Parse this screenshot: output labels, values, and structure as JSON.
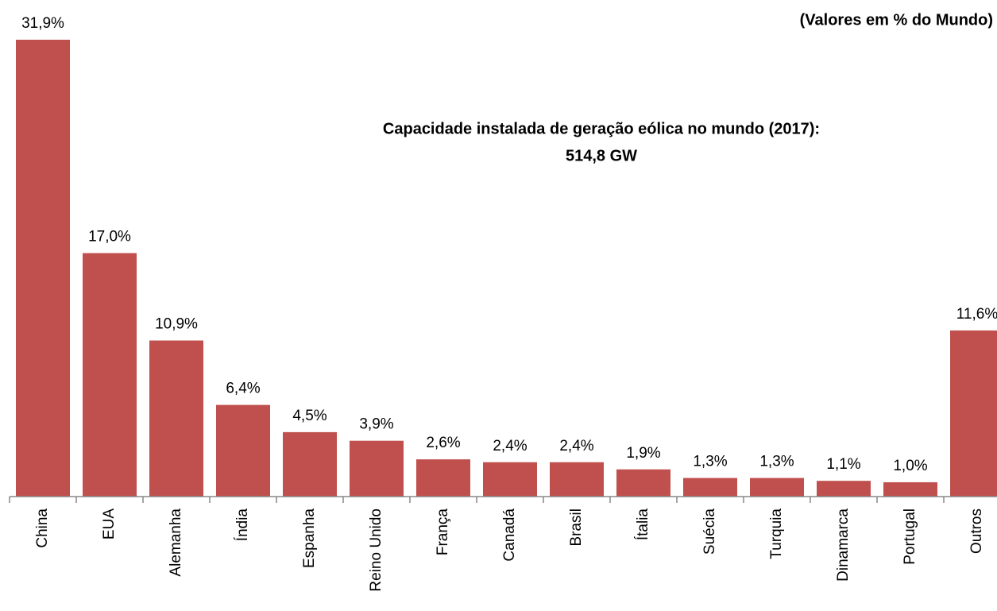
{
  "chart_data": {
    "type": "bar",
    "title": "Capacidade instalada de geração eólica no mundo (2017):",
    "subtitle": "514,8 GW",
    "note": "(Valores em % do Mundo)",
    "categories": [
      "China",
      "EUA",
      "Alemanha",
      "Índia",
      "Espanha",
      "Reino Unido",
      "França",
      "Canadá",
      "Brasil",
      "Ítalia",
      "Suécia",
      "Turquia",
      "Dinamarca",
      "Portugal",
      "Outros"
    ],
    "values": [
      31.9,
      17.0,
      10.9,
      6.4,
      4.5,
      3.9,
      2.6,
      2.4,
      2.4,
      1.9,
      1.3,
      1.3,
      1.1,
      1.0,
      11.6
    ],
    "value_labels": [
      "31,9%",
      "17,0%",
      "10,9%",
      "6,4%",
      "4,5%",
      "3,9%",
      "2,6%",
      "2,4%",
      "2,4%",
      "1,9%",
      "1,3%",
      "1,3%",
      "1,1%",
      "1,0%",
      "11,6%"
    ],
    "color": "#c0504d"
  }
}
